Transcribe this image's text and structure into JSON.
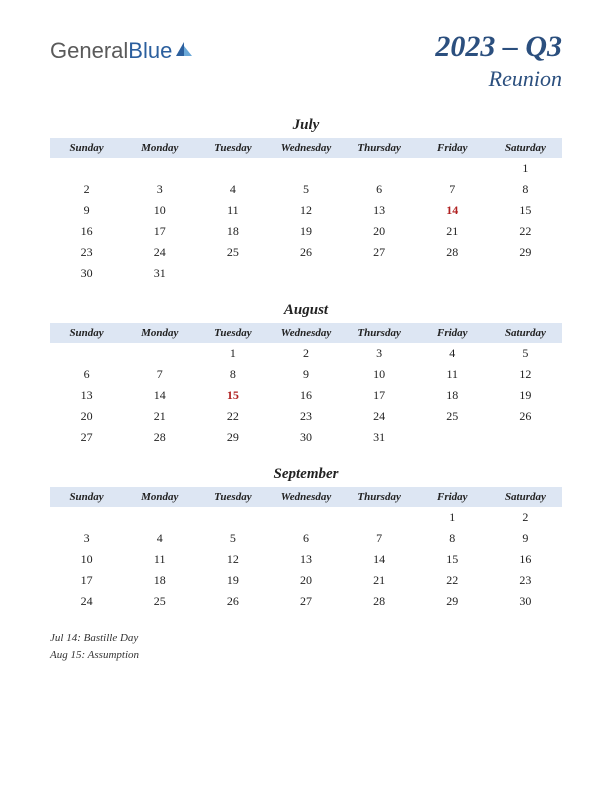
{
  "logo": {
    "part1": "General",
    "part2": "Blue"
  },
  "title": {
    "main": "2023 – Q3",
    "sub": "Reunion"
  },
  "daynames": [
    "Sunday",
    "Monday",
    "Tuesday",
    "Wednesday",
    "Thursday",
    "Friday",
    "Saturday"
  ],
  "colors": {
    "header_bg": "#dde6f3",
    "title_color": "#2b4f7e",
    "holiday_color": "#b02020",
    "text_color": "#222222"
  },
  "months": [
    {
      "name": "July",
      "weeks": [
        [
          "",
          "",
          "",
          "",
          "",
          "",
          "1"
        ],
        [
          "2",
          "3",
          "4",
          "5",
          "6",
          "7",
          "8"
        ],
        [
          "9",
          "10",
          "11",
          "12",
          "13",
          "14",
          "15"
        ],
        [
          "16",
          "17",
          "18",
          "19",
          "20",
          "21",
          "22"
        ],
        [
          "23",
          "24",
          "25",
          "26",
          "27",
          "28",
          "29"
        ],
        [
          "30",
          "31",
          "",
          "",
          "",
          "",
          ""
        ]
      ],
      "holidays": [
        "14"
      ]
    },
    {
      "name": "August",
      "weeks": [
        [
          "",
          "",
          "1",
          "2",
          "3",
          "4",
          "5"
        ],
        [
          "6",
          "7",
          "8",
          "9",
          "10",
          "11",
          "12"
        ],
        [
          "13",
          "14",
          "15",
          "16",
          "17",
          "18",
          "19"
        ],
        [
          "20",
          "21",
          "22",
          "23",
          "24",
          "25",
          "26"
        ],
        [
          "27",
          "28",
          "29",
          "30",
          "31",
          "",
          ""
        ]
      ],
      "holidays": [
        "15"
      ]
    },
    {
      "name": "September",
      "weeks": [
        [
          "",
          "",
          "",
          "",
          "",
          "1",
          "2"
        ],
        [
          "3",
          "4",
          "5",
          "6",
          "7",
          "8",
          "9"
        ],
        [
          "10",
          "11",
          "12",
          "13",
          "14",
          "15",
          "16"
        ],
        [
          "17",
          "18",
          "19",
          "20",
          "21",
          "22",
          "23"
        ],
        [
          "24",
          "25",
          "26",
          "27",
          "28",
          "29",
          "30"
        ]
      ],
      "holidays": []
    }
  ],
  "holiday_list": [
    "Jul 14: Bastille Day",
    "Aug 15: Assumption"
  ]
}
